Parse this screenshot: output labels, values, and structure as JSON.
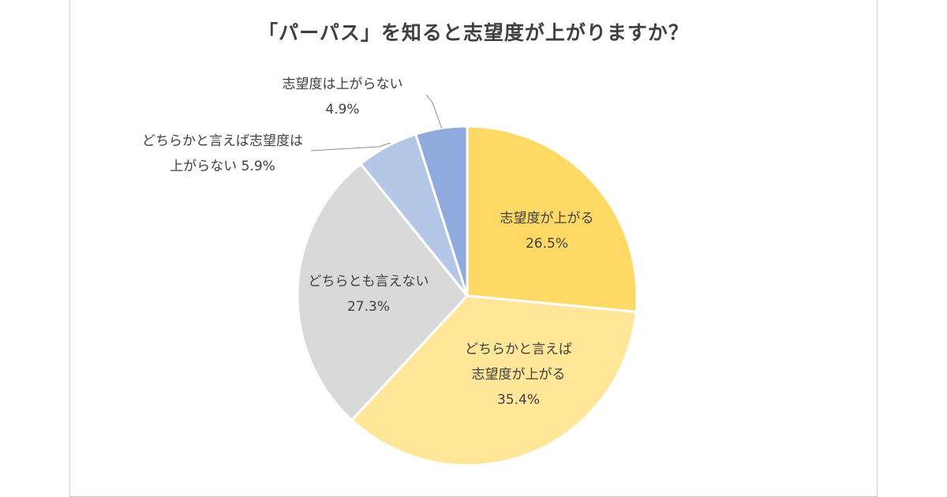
{
  "chart_data": {
    "type": "pie",
    "title": "「パーパス」を知ると志望度が上がりますか？",
    "slices": [
      {
        "label_lines": [
          "志望度が上がる"
        ],
        "value": 26.5,
        "value_text": "26.5%",
        "color": "#FFD966"
      },
      {
        "label_lines": [
          "どちらかと言えば",
          "志望度が上がる"
        ],
        "value": 35.4,
        "value_text": "35.4%",
        "color": "#FFE699"
      },
      {
        "label_lines": [
          "どちらとも言えない"
        ],
        "value": 27.3,
        "value_text": "27.3%",
        "color": "#D9D9D9"
      },
      {
        "label_lines": [
          "どちらかと言えば志望度は",
          "上がらない"
        ],
        "value": 5.9,
        "value_text": "5.9%",
        "color": "#B4C7E7"
      },
      {
        "label_lines": [
          "志望度は上がらない"
        ],
        "value": 4.9,
        "value_text": "4.9%",
        "color": "#8FAADC"
      }
    ],
    "start": "12 o'clock",
    "direction": "clockwise",
    "legend": "none"
  }
}
